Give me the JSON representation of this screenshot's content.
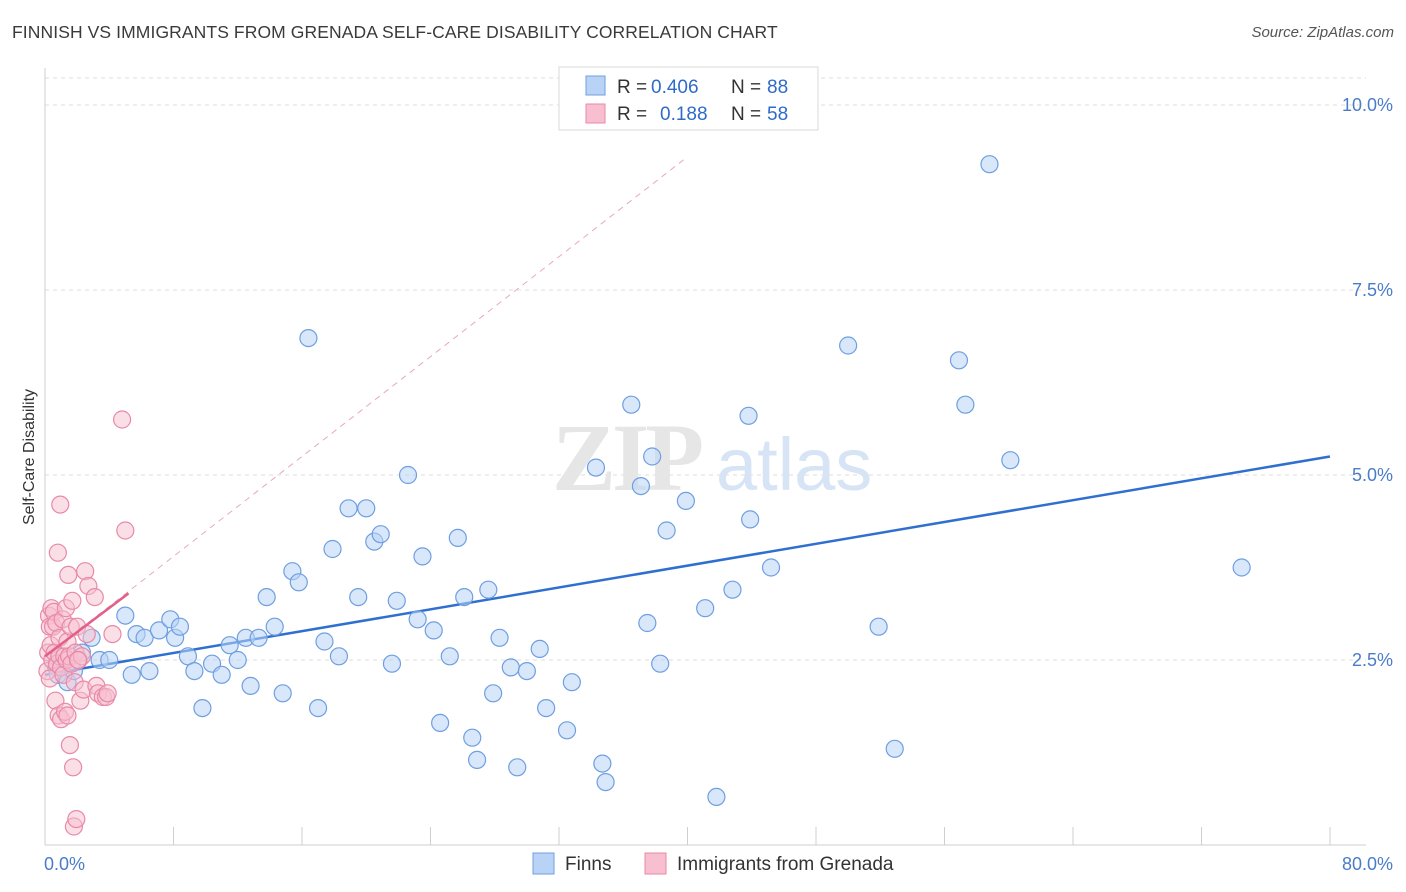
{
  "title": "FINNISH VS IMMIGRANTS FROM GRENADA SELF-CARE DISABILITY CORRELATION CHART",
  "source": "Source: ZipAtlas.com",
  "watermark": {
    "zip": "ZIP",
    "atlas": "atlas"
  },
  "colors": {
    "finns_fill": "#b8d3f5",
    "finns_stroke": "#6f9fe0",
    "finns_line": "#2e6fd0",
    "grenada_fill": "#f7bfd0",
    "grenada_stroke": "#e889a8",
    "grenada_line": "#e0608a",
    "grid": "#dcdcdc",
    "axis_text": "#4a7cc8"
  },
  "legend": {
    "rows": [
      {
        "r_label": "R =",
        "r_value": "0.406",
        "n_label": "N =",
        "n_value": "88"
      },
      {
        "r_label": "R =",
        "r_value": "0.188",
        "n_label": "N =",
        "n_value": "58"
      }
    ]
  },
  "bottom_legend": [
    "Finns",
    "Immigrants from Grenada"
  ],
  "chart_data": {
    "type": "scatter",
    "title": "FINNISH VS IMMIGRANTS FROM GRENADA SELF-CARE DISABILITY CORRELATION CHART",
    "xlabel": "",
    "ylabel": "Self-Care Disability",
    "xlim": [
      0,
      80
    ],
    "ylim": [
      0,
      10.5
    ],
    "x_tick_labels": [
      "0.0%",
      "80.0%"
    ],
    "y_ticks": [
      2.5,
      5.0,
      7.5,
      10.0
    ],
    "y_tick_labels": [
      "2.5%",
      "5.0%",
      "7.5%",
      "10.0%"
    ],
    "grid": "horizontal dashed",
    "legend_position": "top-center",
    "series": [
      {
        "name": "Finns",
        "R": 0.406,
        "N": 88,
        "trend": {
          "x": [
            0,
            80
          ],
          "y": [
            2.3,
            5.25
          ]
        },
        "points": [
          [
            0.7,
            2.4
          ],
          [
            0.8,
            2.3
          ],
          [
            1.4,
            2.2
          ],
          [
            1.8,
            2.35
          ],
          [
            2.3,
            2.6
          ],
          [
            2.9,
            2.8
          ],
          [
            3.4,
            2.5
          ],
          [
            4.0,
            2.5
          ],
          [
            5.0,
            3.1
          ],
          [
            5.4,
            2.3
          ],
          [
            5.7,
            2.85
          ],
          [
            6.2,
            2.8
          ],
          [
            6.5,
            2.35
          ],
          [
            7.1,
            2.9
          ],
          [
            7.8,
            3.05
          ],
          [
            8.1,
            2.8
          ],
          [
            8.4,
            2.95
          ],
          [
            8.9,
            2.55
          ],
          [
            9.3,
            2.35
          ],
          [
            9.8,
            1.85
          ],
          [
            10.4,
            2.45
          ],
          [
            11.0,
            2.3
          ],
          [
            11.5,
            2.7
          ],
          [
            12.0,
            2.5
          ],
          [
            12.5,
            2.8
          ],
          [
            12.8,
            2.15
          ],
          [
            13.3,
            2.8
          ],
          [
            13.8,
            3.35
          ],
          [
            14.3,
            2.95
          ],
          [
            14.8,
            2.05
          ],
          [
            15.4,
            3.7
          ],
          [
            15.8,
            3.55
          ],
          [
            16.4,
            6.85
          ],
          [
            17.0,
            1.85
          ],
          [
            17.4,
            2.75
          ],
          [
            17.9,
            4.0
          ],
          [
            18.3,
            2.55
          ],
          [
            18.9,
            4.55
          ],
          [
            19.5,
            3.35
          ],
          [
            20.0,
            4.55
          ],
          [
            20.5,
            4.1
          ],
          [
            20.9,
            4.2
          ],
          [
            21.6,
            2.45
          ],
          [
            21.9,
            3.3
          ],
          [
            22.6,
            5.0
          ],
          [
            23.2,
            3.05
          ],
          [
            23.5,
            3.9
          ],
          [
            24.2,
            2.9
          ],
          [
            24.6,
            1.65
          ],
          [
            25.2,
            2.55
          ],
          [
            25.7,
            4.15
          ],
          [
            26.1,
            3.35
          ],
          [
            26.6,
            1.45
          ],
          [
            26.9,
            1.15
          ],
          [
            27.6,
            3.45
          ],
          [
            27.9,
            2.05
          ],
          [
            28.3,
            2.8
          ],
          [
            29.0,
            2.4
          ],
          [
            29.4,
            1.05
          ],
          [
            30.0,
            2.35
          ],
          [
            30.8,
            2.65
          ],
          [
            31.2,
            1.85
          ],
          [
            32.5,
            1.55
          ],
          [
            32.8,
            2.2
          ],
          [
            34.3,
            5.1
          ],
          [
            34.7,
            1.1
          ],
          [
            34.9,
            0.85
          ],
          [
            36.5,
            5.95
          ],
          [
            37.1,
            4.85
          ],
          [
            37.5,
            3.0
          ],
          [
            37.8,
            5.25
          ],
          [
            38.3,
            2.45
          ],
          [
            38.7,
            4.25
          ],
          [
            39.9,
            4.65
          ],
          [
            41.1,
            3.2
          ],
          [
            41.8,
            0.65
          ],
          [
            42.8,
            3.45
          ],
          [
            43.8,
            5.8
          ],
          [
            43.9,
            4.4
          ],
          [
            45.2,
            3.75
          ],
          [
            50.0,
            6.75
          ],
          [
            51.9,
            2.95
          ],
          [
            52.9,
            1.3
          ],
          [
            56.9,
            6.55
          ],
          [
            57.3,
            5.95
          ],
          [
            58.8,
            9.2
          ],
          [
            60.1,
            5.2
          ],
          [
            74.5,
            3.75
          ]
        ]
      },
      {
        "name": "Immigrants from Grenada",
        "R": 0.188,
        "N": 58,
        "trend": {
          "x": [
            0,
            5.2
          ],
          "y": [
            2.55,
            3.4
          ]
        },
        "trend_extended": {
          "x": [
            0,
            40
          ],
          "y": [
            2.55,
            9.3
          ]
        },
        "points": [
          [
            0.15,
            2.35
          ],
          [
            0.2,
            2.6
          ],
          [
            0.25,
            3.1
          ],
          [
            0.3,
            2.25
          ],
          [
            0.3,
            2.95
          ],
          [
            0.35,
            2.7
          ],
          [
            0.4,
            3.2
          ],
          [
            0.45,
            2.5
          ],
          [
            0.5,
            2.95
          ],
          [
            0.55,
            3.15
          ],
          [
            0.6,
            2.6
          ],
          [
            0.65,
            1.95
          ],
          [
            0.7,
            3.0
          ],
          [
            0.75,
            2.45
          ],
          [
            0.8,
            3.95
          ],
          [
            0.85,
            1.75
          ],
          [
            0.9,
            2.55
          ],
          [
            0.9,
            2.8
          ],
          [
            0.95,
            4.6
          ],
          [
            1.0,
            2.4
          ],
          [
            1.0,
            1.7
          ],
          [
            1.1,
            3.05
          ],
          [
            1.15,
            2.3
          ],
          [
            1.2,
            2.55
          ],
          [
            1.25,
            1.8
          ],
          [
            1.3,
            3.2
          ],
          [
            1.35,
            2.5
          ],
          [
            1.4,
            2.75
          ],
          [
            1.4,
            1.75
          ],
          [
            1.45,
            3.65
          ],
          [
            1.5,
            2.55
          ],
          [
            1.55,
            1.35
          ],
          [
            1.6,
            2.95
          ],
          [
            1.65,
            2.45
          ],
          [
            1.7,
            3.3
          ],
          [
            1.75,
            1.05
          ],
          [
            1.8,
            0.25
          ],
          [
            1.85,
            2.2
          ],
          [
            1.9,
            2.6
          ],
          [
            1.95,
            0.35
          ],
          [
            2.0,
            2.95
          ],
          [
            2.1,
            2.5
          ],
          [
            2.2,
            1.95
          ],
          [
            2.3,
            2.55
          ],
          [
            2.4,
            2.1
          ],
          [
            2.5,
            3.7
          ],
          [
            2.6,
            2.85
          ],
          [
            2.7,
            3.5
          ],
          [
            3.1,
            3.35
          ],
          [
            3.2,
            2.15
          ],
          [
            3.3,
            2.05
          ],
          [
            3.6,
            2.0
          ],
          [
            3.8,
            2.0
          ],
          [
            3.9,
            2.05
          ],
          [
            4.2,
            2.85
          ],
          [
            4.8,
            5.75
          ],
          [
            5.0,
            4.25
          ],
          [
            2.05,
            2.5
          ]
        ]
      }
    ]
  }
}
